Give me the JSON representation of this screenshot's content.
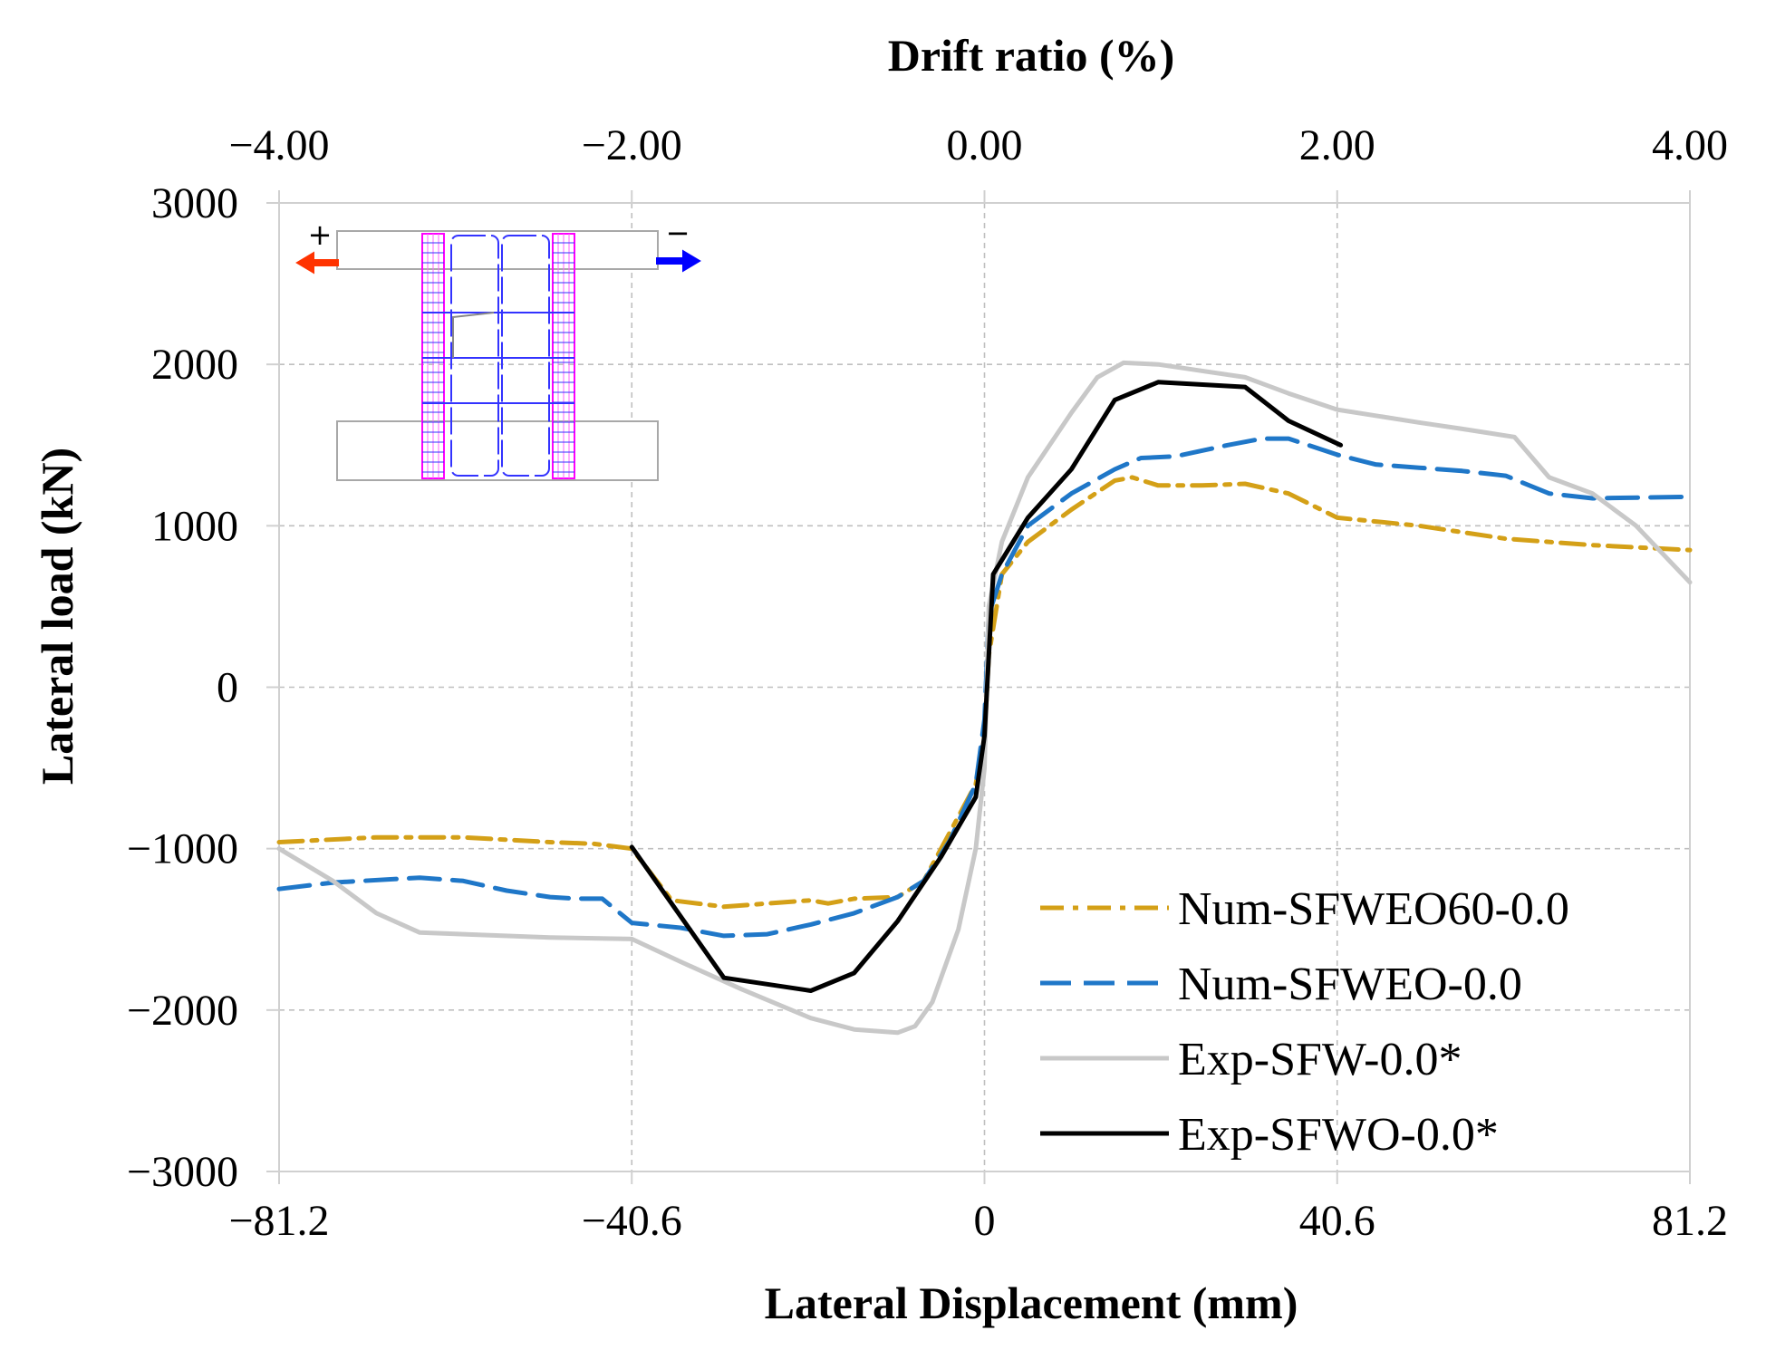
{
  "chart_data": {
    "type": "line",
    "top_axis": {
      "title": "Drift ratio (%)",
      "range": [
        -4,
        4
      ],
      "ticks": [
        -4,
        -2,
        0,
        2,
        4
      ],
      "tick_labels": [
        "−4.00",
        "−2.00",
        "0.00",
        "2.00",
        "4.00"
      ]
    },
    "xlabel": "Lateral Displacement (mm)",
    "xlim": [
      -81.2,
      81.2
    ],
    "xticks": [
      -81.2,
      -40.6,
      0,
      40.6,
      81.2
    ],
    "xtick_labels": [
      "−81.2",
      "−40.6",
      "0",
      "40.6",
      "81.2"
    ],
    "ylabel": "Lateral load (kN)",
    "ylim": [
      -3000,
      3000
    ],
    "yticks": [
      -3000,
      -2000,
      -1000,
      0,
      1000,
      2000,
      3000
    ],
    "ytick_labels": [
      "−3000",
      "−2000",
      "−1000",
      "0",
      "1000",
      "2000",
      "3000"
    ],
    "grid": true,
    "legend_position": "bottom-right",
    "inset": {
      "description": "wall specimen sketch",
      "labels": [
        "+",
        "−"
      ],
      "arrow_left_color": "#ff3300",
      "arrow_right_color": "#0000ff",
      "reinforcement_color": "#ff00ff",
      "frame_color": "#3333ff"
    },
    "series": [
      {
        "name": "Num-SFWEO60-0.0",
        "color": "#d4a017",
        "style": "dashdot",
        "points": [
          [
            -81.2,
            -960
          ],
          [
            -70,
            -930
          ],
          [
            -60,
            -930
          ],
          [
            -50,
            -960
          ],
          [
            -45,
            -970
          ],
          [
            -40.6,
            -1000
          ],
          [
            -36,
            -1320
          ],
          [
            -30,
            -1360
          ],
          [
            -25,
            -1340
          ],
          [
            -20,
            -1320
          ],
          [
            -18,
            -1340
          ],
          [
            -15,
            -1310
          ],
          [
            -10,
            -1300
          ],
          [
            -7,
            -1200
          ],
          [
            -4,
            -900
          ],
          [
            -1,
            -600
          ],
          [
            0,
            -300
          ],
          [
            0.5,
            200
          ],
          [
            2,
            700
          ],
          [
            5,
            900
          ],
          [
            10,
            1100
          ],
          [
            15,
            1280
          ],
          [
            17,
            1300
          ],
          [
            20,
            1250
          ],
          [
            25,
            1250
          ],
          [
            30,
            1260
          ],
          [
            35,
            1200
          ],
          [
            40.6,
            1050
          ],
          [
            50,
            1000
          ],
          [
            60,
            920
          ],
          [
            70,
            880
          ],
          [
            81.2,
            850
          ]
        ]
      },
      {
        "name": "Num-SFWEO-0.0",
        "color": "#1f77c8",
        "style": "dashed",
        "points": [
          [
            -81.2,
            -1250
          ],
          [
            -75,
            -1210
          ],
          [
            -65,
            -1180
          ],
          [
            -60,
            -1200
          ],
          [
            -55,
            -1260
          ],
          [
            -50,
            -1300
          ],
          [
            -47,
            -1310
          ],
          [
            -44,
            -1310
          ],
          [
            -40.6,
            -1460
          ],
          [
            -35,
            -1490
          ],
          [
            -30,
            -1540
          ],
          [
            -25,
            -1530
          ],
          [
            -20,
            -1470
          ],
          [
            -15,
            -1400
          ],
          [
            -10,
            -1300
          ],
          [
            -7,
            -1200
          ],
          [
            -4,
            -950
          ],
          [
            -1,
            -600
          ],
          [
            0,
            -200
          ],
          [
            0.5,
            450
          ],
          [
            2,
            700
          ],
          [
            5,
            1000
          ],
          [
            10,
            1200
          ],
          [
            15,
            1350
          ],
          [
            18,
            1420
          ],
          [
            22,
            1430
          ],
          [
            28,
            1500
          ],
          [
            32,
            1540
          ],
          [
            35,
            1540
          ],
          [
            40.6,
            1440
          ],
          [
            45,
            1380
          ],
          [
            50,
            1360
          ],
          [
            55,
            1340
          ],
          [
            60,
            1310
          ],
          [
            65,
            1200
          ],
          [
            70,
            1170
          ],
          [
            81.2,
            1180
          ]
        ]
      },
      {
        "name": "Exp-SFW-0.0*",
        "color": "#c8c8c8",
        "style": "solid",
        "points": [
          [
            -81.2,
            -1000
          ],
          [
            -75,
            -1200
          ],
          [
            -70,
            -1400
          ],
          [
            -65,
            -1520
          ],
          [
            -60,
            -1530
          ],
          [
            -50,
            -1550
          ],
          [
            -40.6,
            -1560
          ],
          [
            -35,
            -1700
          ],
          [
            -28,
            -1870
          ],
          [
            -20,
            -2050
          ],
          [
            -15,
            -2120
          ],
          [
            -10,
            -2140
          ],
          [
            -8,
            -2100
          ],
          [
            -6,
            -1950
          ],
          [
            -3,
            -1500
          ],
          [
            -1,
            -1000
          ],
          [
            0,
            -500
          ],
          [
            0.5,
            500
          ],
          [
            2,
            900
          ],
          [
            5,
            1300
          ],
          [
            10,
            1700
          ],
          [
            13,
            1920
          ],
          [
            16,
            2010
          ],
          [
            20,
            2000
          ],
          [
            25,
            1960
          ],
          [
            30,
            1920
          ],
          [
            35,
            1820
          ],
          [
            40.6,
            1720
          ],
          [
            50,
            1640
          ],
          [
            55,
            1600
          ],
          [
            61,
            1550
          ],
          [
            65,
            1300
          ],
          [
            70,
            1200
          ],
          [
            75,
            1000
          ],
          [
            81.2,
            650
          ]
        ]
      },
      {
        "name": "Exp-SFWO-0.0*",
        "color": "#000000",
        "style": "solid",
        "points": [
          [
            -40.6,
            -990
          ],
          [
            -30,
            -1800
          ],
          [
            -20,
            -1880
          ],
          [
            -15,
            -1770
          ],
          [
            -10,
            -1450
          ],
          [
            -5,
            -1050
          ],
          [
            -1,
            -680
          ],
          [
            0,
            -300
          ],
          [
            1,
            700
          ],
          [
            5,
            1050
          ],
          [
            10,
            1350
          ],
          [
            15,
            1780
          ],
          [
            20,
            1890
          ],
          [
            30,
            1860
          ],
          [
            35,
            1650
          ],
          [
            41,
            1500
          ]
        ]
      }
    ]
  }
}
